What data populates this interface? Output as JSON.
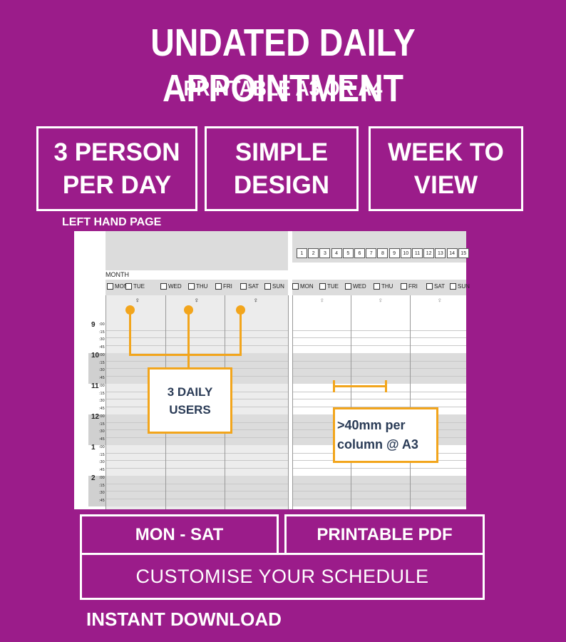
{
  "header": {
    "title": "UNDATED DAILY APPOINTMENT",
    "subtitle": "PRINTABLE A3 OR A4"
  },
  "features": [
    {
      "label": "3 PERSON\nPER DAY"
    },
    {
      "label": "SIMPLE\nDESIGN"
    },
    {
      "label": "WEEK TO\nVIEW"
    }
  ],
  "preview": {
    "page_label": "LEFT HAND PAGE",
    "month_label": "MONTH",
    "days": [
      "MON",
      "TUE",
      "WED",
      "THU",
      "FRI",
      "SAT",
      "SUN"
    ],
    "numbers": [
      "1",
      "2",
      "3",
      "4",
      "5",
      "6",
      "7",
      "8",
      "9",
      "10",
      "11",
      "12",
      "13",
      "14",
      "15"
    ],
    "hours": [
      "9",
      "10",
      "11",
      "12",
      "1",
      "2"
    ],
    "minutes": [
      ":00",
      ":15",
      ":30",
      ":45"
    ],
    "person_icon": "person-icon",
    "callout_users": "3 DAILY\nUSERS",
    "callout_width": ">40mm per\ncolumn @ A3",
    "accent_color": "#f2a51c"
  },
  "bottom": {
    "mon_sat": "MON - SAT",
    "pdf": "PRINTABLE PDF",
    "customise": "CUSTOMISE YOUR SCHEDULE",
    "instant": "INSTANT DOWNLOAD"
  },
  "colors": {
    "background": "#9b1c8a",
    "accent": "#f2a51c",
    "text": "#ffffff"
  }
}
